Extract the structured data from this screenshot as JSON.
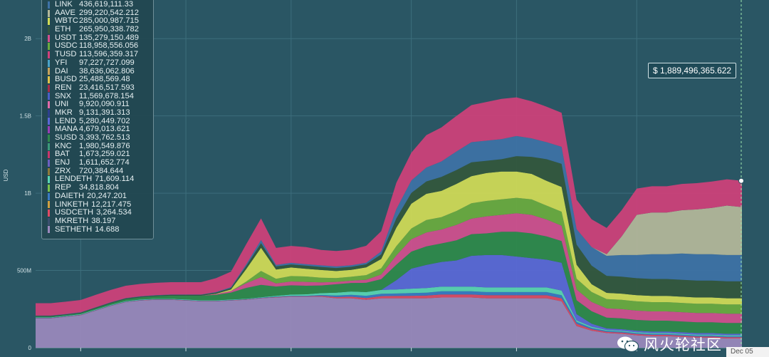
{
  "chart_data": {
    "type": "area",
    "stacked": true,
    "ylabel": "USD",
    "yticks": [
      "0",
      "500M",
      "1B",
      "1.5B",
      "2B"
    ],
    "ylim": [
      0,
      2250000000
    ],
    "grid": true,
    "legend_position": "top-left",
    "x": [
      0,
      1,
      2,
      3,
      4,
      5,
      6,
      7,
      8,
      9,
      10,
      11,
      12,
      13,
      14,
      15,
      16,
      17,
      18,
      19,
      20,
      21,
      22,
      23,
      24,
      25,
      26,
      27,
      28,
      29,
      30,
      31,
      32,
      33,
      34,
      35,
      36,
      37,
      38,
      39,
      40,
      41,
      42,
      43,
      44,
      45,
      46,
      47
    ],
    "xtick_at": [
      3,
      10,
      17,
      25,
      32,
      40
    ],
    "end_label": "Dec 05",
    "series": [
      {
        "name": "SETHETH",
        "value_label": "14.688",
        "color": "#9b89bd",
        "values": [
          190,
          190,
          200,
          210,
          240,
          270,
          295,
          305,
          310,
          310,
          305,
          300,
          300,
          305,
          310,
          320,
          325,
          330,
          330,
          330,
          320,
          320,
          310,
          320,
          320,
          320,
          320,
          325,
          325,
          325,
          320,
          320,
          320,
          320,
          320,
          300,
          140,
          110,
          95,
          90,
          80,
          75,
          75,
          70,
          65,
          65,
          60,
          60
        ]
      },
      {
        "name": "USDCETH",
        "value_label": "3,264.534",
        "color": "#e04a64",
        "values": [
          2,
          2,
          2,
          2,
          2,
          2,
          2,
          2,
          2,
          2,
          2,
          2,
          2,
          2,
          2,
          2,
          3,
          3,
          3,
          5,
          8,
          10,
          12,
          14,
          15,
          16,
          18,
          20,
          20,
          20,
          20,
          20,
          20,
          20,
          20,
          20,
          15,
          10,
          8,
          8,
          8,
          8,
          8,
          8,
          8,
          8,
          8,
          8
        ]
      },
      {
        "name": "DAIETH",
        "value_label": "20,247.201",
        "color": "#3a7ac4",
        "values": [
          2,
          2,
          2,
          2,
          2,
          2,
          2,
          2,
          2,
          2,
          2,
          2,
          2,
          2,
          2,
          2,
          3,
          3,
          3,
          6,
          10,
          12,
          14,
          15,
          16,
          18,
          18,
          20,
          20,
          20,
          20,
          20,
          20,
          20,
          20,
          20,
          12,
          8,
          6,
          6,
          6,
          6,
          6,
          6,
          6,
          6,
          6,
          6
        ]
      },
      {
        "name": "LENDETH",
        "value_label": "71,609.114",
        "color": "#5ad6b4",
        "values": [
          3,
          3,
          3,
          3,
          3,
          3,
          3,
          3,
          3,
          3,
          3,
          3,
          3,
          3,
          3,
          3,
          5,
          8,
          10,
          12,
          18,
          22,
          24,
          25,
          26,
          28,
          30,
          30,
          30,
          30,
          30,
          30,
          30,
          30,
          30,
          30,
          10,
          8,
          6,
          6,
          6,
          6,
          6,
          6,
          6,
          6,
          6,
          6
        ]
      },
      {
        "name": "LEND",
        "value_label": "5,280,449.702",
        "color": "#5b68d8",
        "values": [
          0,
          0,
          0,
          0,
          0,
          0,
          0,
          0,
          0,
          0,
          0,
          0,
          0,
          0,
          0,
          0,
          0,
          0,
          0,
          0,
          0,
          0,
          0,
          0,
          60,
          130,
          150,
          160,
          170,
          200,
          210,
          210,
          200,
          190,
          180,
          180,
          40,
          20,
          10,
          10,
          10,
          10,
          10,
          10,
          10,
          10,
          10,
          10
        ]
      },
      {
        "name": "SUSD",
        "value_label": "3,393,762.513",
        "color": "#2f8a4a",
        "values": [
          5,
          5,
          5,
          6,
          8,
          10,
          12,
          14,
          16,
          20,
          25,
          30,
          35,
          45,
          70,
          80,
          60,
          60,
          55,
          50,
          55,
          55,
          60,
          70,
          100,
          110,
          120,
          120,
          130,
          140,
          140,
          150,
          160,
          160,
          150,
          140,
          90,
          80,
          70,
          70,
          70,
          70,
          70,
          70,
          70,
          70,
          70,
          70
        ]
      },
      {
        "name": "USDT",
        "value_label": "135,279,150.489",
        "color": "#d24f8e",
        "values": [
          0,
          0,
          0,
          0,
          0,
          0,
          0,
          0,
          0,
          0,
          0,
          0,
          5,
          10,
          30,
          50,
          20,
          25,
          25,
          20,
          15,
          15,
          20,
          30,
          60,
          80,
          90,
          90,
          100,
          100,
          110,
          110,
          120,
          120,
          110,
          100,
          70,
          60,
          60,
          60,
          60,
          60,
          60,
          60,
          60,
          60,
          60,
          60
        ]
      },
      {
        "name": "USDC",
        "value_label": "118,958,556.056",
        "color": "#6bab3e",
        "values": [
          0,
          0,
          0,
          0,
          0,
          0,
          0,
          0,
          0,
          0,
          0,
          0,
          0,
          0,
          10,
          40,
          30,
          35,
          35,
          30,
          25,
          25,
          30,
          40,
          60,
          70,
          80,
          80,
          90,
          100,
          100,
          100,
          100,
          100,
          90,
          90,
          70,
          65,
          60,
          60,
          60,
          60,
          60,
          60,
          60,
          60,
          60,
          60
        ]
      },
      {
        "name": "WBTC",
        "value_label": "285,000,987.715",
        "color": "#d3dc56",
        "values": [
          0,
          0,
          0,
          0,
          0,
          0,
          0,
          0,
          0,
          0,
          0,
          0,
          2,
          10,
          80,
          150,
          60,
          55,
          50,
          50,
          45,
          45,
          50,
          60,
          120,
          160,
          170,
          170,
          175,
          175,
          180,
          180,
          170,
          165,
          160,
          160,
          90,
          50,
          40,
          40,
          40,
          40,
          40,
          40,
          40,
          40,
          40,
          40
        ]
      },
      {
        "name": "ETH",
        "value_label": "265,950,338.782",
        "color": "#33573c",
        "values": [
          4,
          4,
          4,
          4,
          5,
          5,
          5,
          5,
          5,
          5,
          5,
          5,
          8,
          10,
          20,
          30,
          20,
          20,
          20,
          20,
          20,
          20,
          20,
          30,
          60,
          70,
          80,
          90,
          90,
          90,
          80,
          80,
          100,
          110,
          140,
          150,
          130,
          120,
          110,
          110,
          110,
          110,
          110,
          110,
          110,
          110,
          110,
          110
        ]
      },
      {
        "name": "LINK",
        "value_label": "436,619,111.33",
        "color": "#3e72a6",
        "values": [
          2,
          2,
          2,
          2,
          2,
          2,
          2,
          2,
          2,
          2,
          2,
          2,
          3,
          5,
          10,
          20,
          10,
          10,
          10,
          10,
          10,
          10,
          10,
          20,
          60,
          80,
          90,
          100,
          120,
          130,
          130,
          130,
          130,
          120,
          110,
          110,
          100,
          120,
          130,
          140,
          150,
          160,
          160,
          170,
          170,
          170,
          170,
          170
        ]
      },
      {
        "name": "AAVE",
        "value_label": "299,220,542.212",
        "color": "#b5b89a",
        "values": [
          0,
          0,
          0,
          0,
          0,
          0,
          0,
          0,
          0,
          0,
          0,
          0,
          0,
          0,
          0,
          0,
          0,
          0,
          0,
          0,
          0,
          0,
          0,
          0,
          0,
          0,
          0,
          0,
          0,
          0,
          0,
          0,
          0,
          0,
          0,
          0,
          0,
          0,
          10,
          120,
          260,
          270,
          270,
          280,
          290,
          300,
          320,
          310
        ]
      },
      {
        "name": "TUSD",
        "value_label": "113,596,359.317",
        "color": "#d0407a",
        "values": [
          80,
          80,
          80,
          80,
          80,
          80,
          80,
          80,
          80,
          80,
          80,
          80,
          90,
          100,
          130,
          140,
          110,
          110,
          110,
          100,
          100,
          100,
          110,
          130,
          170,
          180,
          210,
          220,
          230,
          240,
          250,
          260,
          250,
          240,
          230,
          220,
          190,
          180,
          170,
          170,
          170,
          170,
          170,
          170,
          170,
          170,
          170,
          170
        ]
      }
    ]
  },
  "legend": [
    {
      "name": "LINK",
      "value": "436,619,111.33",
      "color": "#3e72a6"
    },
    {
      "name": "AAVE",
      "value": "299,220,542.212",
      "color": "#b5b89a"
    },
    {
      "name": "WBTC",
      "value": "285,000,987.715",
      "color": "#d3dc56"
    },
    {
      "name": "ETH",
      "value": "265,950,338.782",
      "color": "#33573c"
    },
    {
      "name": "USDT",
      "value": "135,279,150.489",
      "color": "#d24f8e"
    },
    {
      "name": "USDC",
      "value": "118,958,556.056",
      "color": "#6bab3e"
    },
    {
      "name": "TUSD",
      "value": "113,596,359.317",
      "color": "#d0407a"
    },
    {
      "name": "YFI",
      "value": "97,227,727.099",
      "color": "#4aa3c9"
    },
    {
      "name": "DAI",
      "value": "38,636,062.806",
      "color": "#c9a35a"
    },
    {
      "name": "BUSD",
      "value": "25,488,569.48",
      "color": "#e0c34a"
    },
    {
      "name": "REN",
      "value": "23,416,517.593",
      "color": "#a62b4a"
    },
    {
      "name": "SNX",
      "value": "11,569,678.154",
      "color": "#4a5fc7"
    },
    {
      "name": "UNI",
      "value": "9,920,090.911",
      "color": "#e06aa8"
    },
    {
      "name": "MKR",
      "value": "9,131,391.313",
      "color": "#2e3f8f"
    },
    {
      "name": "LEND",
      "value": "5,280,449.702",
      "color": "#5b68d8"
    },
    {
      "name": "MANA",
      "value": "4,679,013.621",
      "color": "#9a3fb5"
    },
    {
      "name": "SUSD",
      "value": "3,393,762.513",
      "color": "#2f8a4a"
    },
    {
      "name": "KNC",
      "value": "1,980,549.876",
      "color": "#3b9a7a"
    },
    {
      "name": "BAT",
      "value": "1,673,259.021",
      "color": "#c9356b"
    },
    {
      "name": "ENJ",
      "value": "1,611,652.774",
      "color": "#6d5fc0"
    },
    {
      "name": "ZRX",
      "value": "720,384.644",
      "color": "#8f7a3a"
    },
    {
      "name": "LENDETH",
      "value": "71,609.114",
      "color": "#5ad6b4"
    },
    {
      "name": "REP",
      "value": "34,818.804",
      "color": "#7ac14a"
    },
    {
      "name": "DAIETH",
      "value": "20,247.201",
      "color": "#3a7ac4"
    },
    {
      "name": "LINKETH",
      "value": "12,217.475",
      "color": "#d0a040"
    },
    {
      "name": "USDCETH",
      "value": "3,264.534",
      "color": "#e04a64"
    },
    {
      "name": "MKRETH",
      "value": "38.197",
      "color": "#3c5070"
    },
    {
      "name": "SETHETH",
      "value": "14.688",
      "color": "#9b89bd"
    }
  ],
  "tooltip": {
    "text": "$ 1,889,496,365.622"
  },
  "x_end_label": "Dec 05",
  "watermark": {
    "text": "风火轮社区",
    "icon": "wechat-icon"
  }
}
